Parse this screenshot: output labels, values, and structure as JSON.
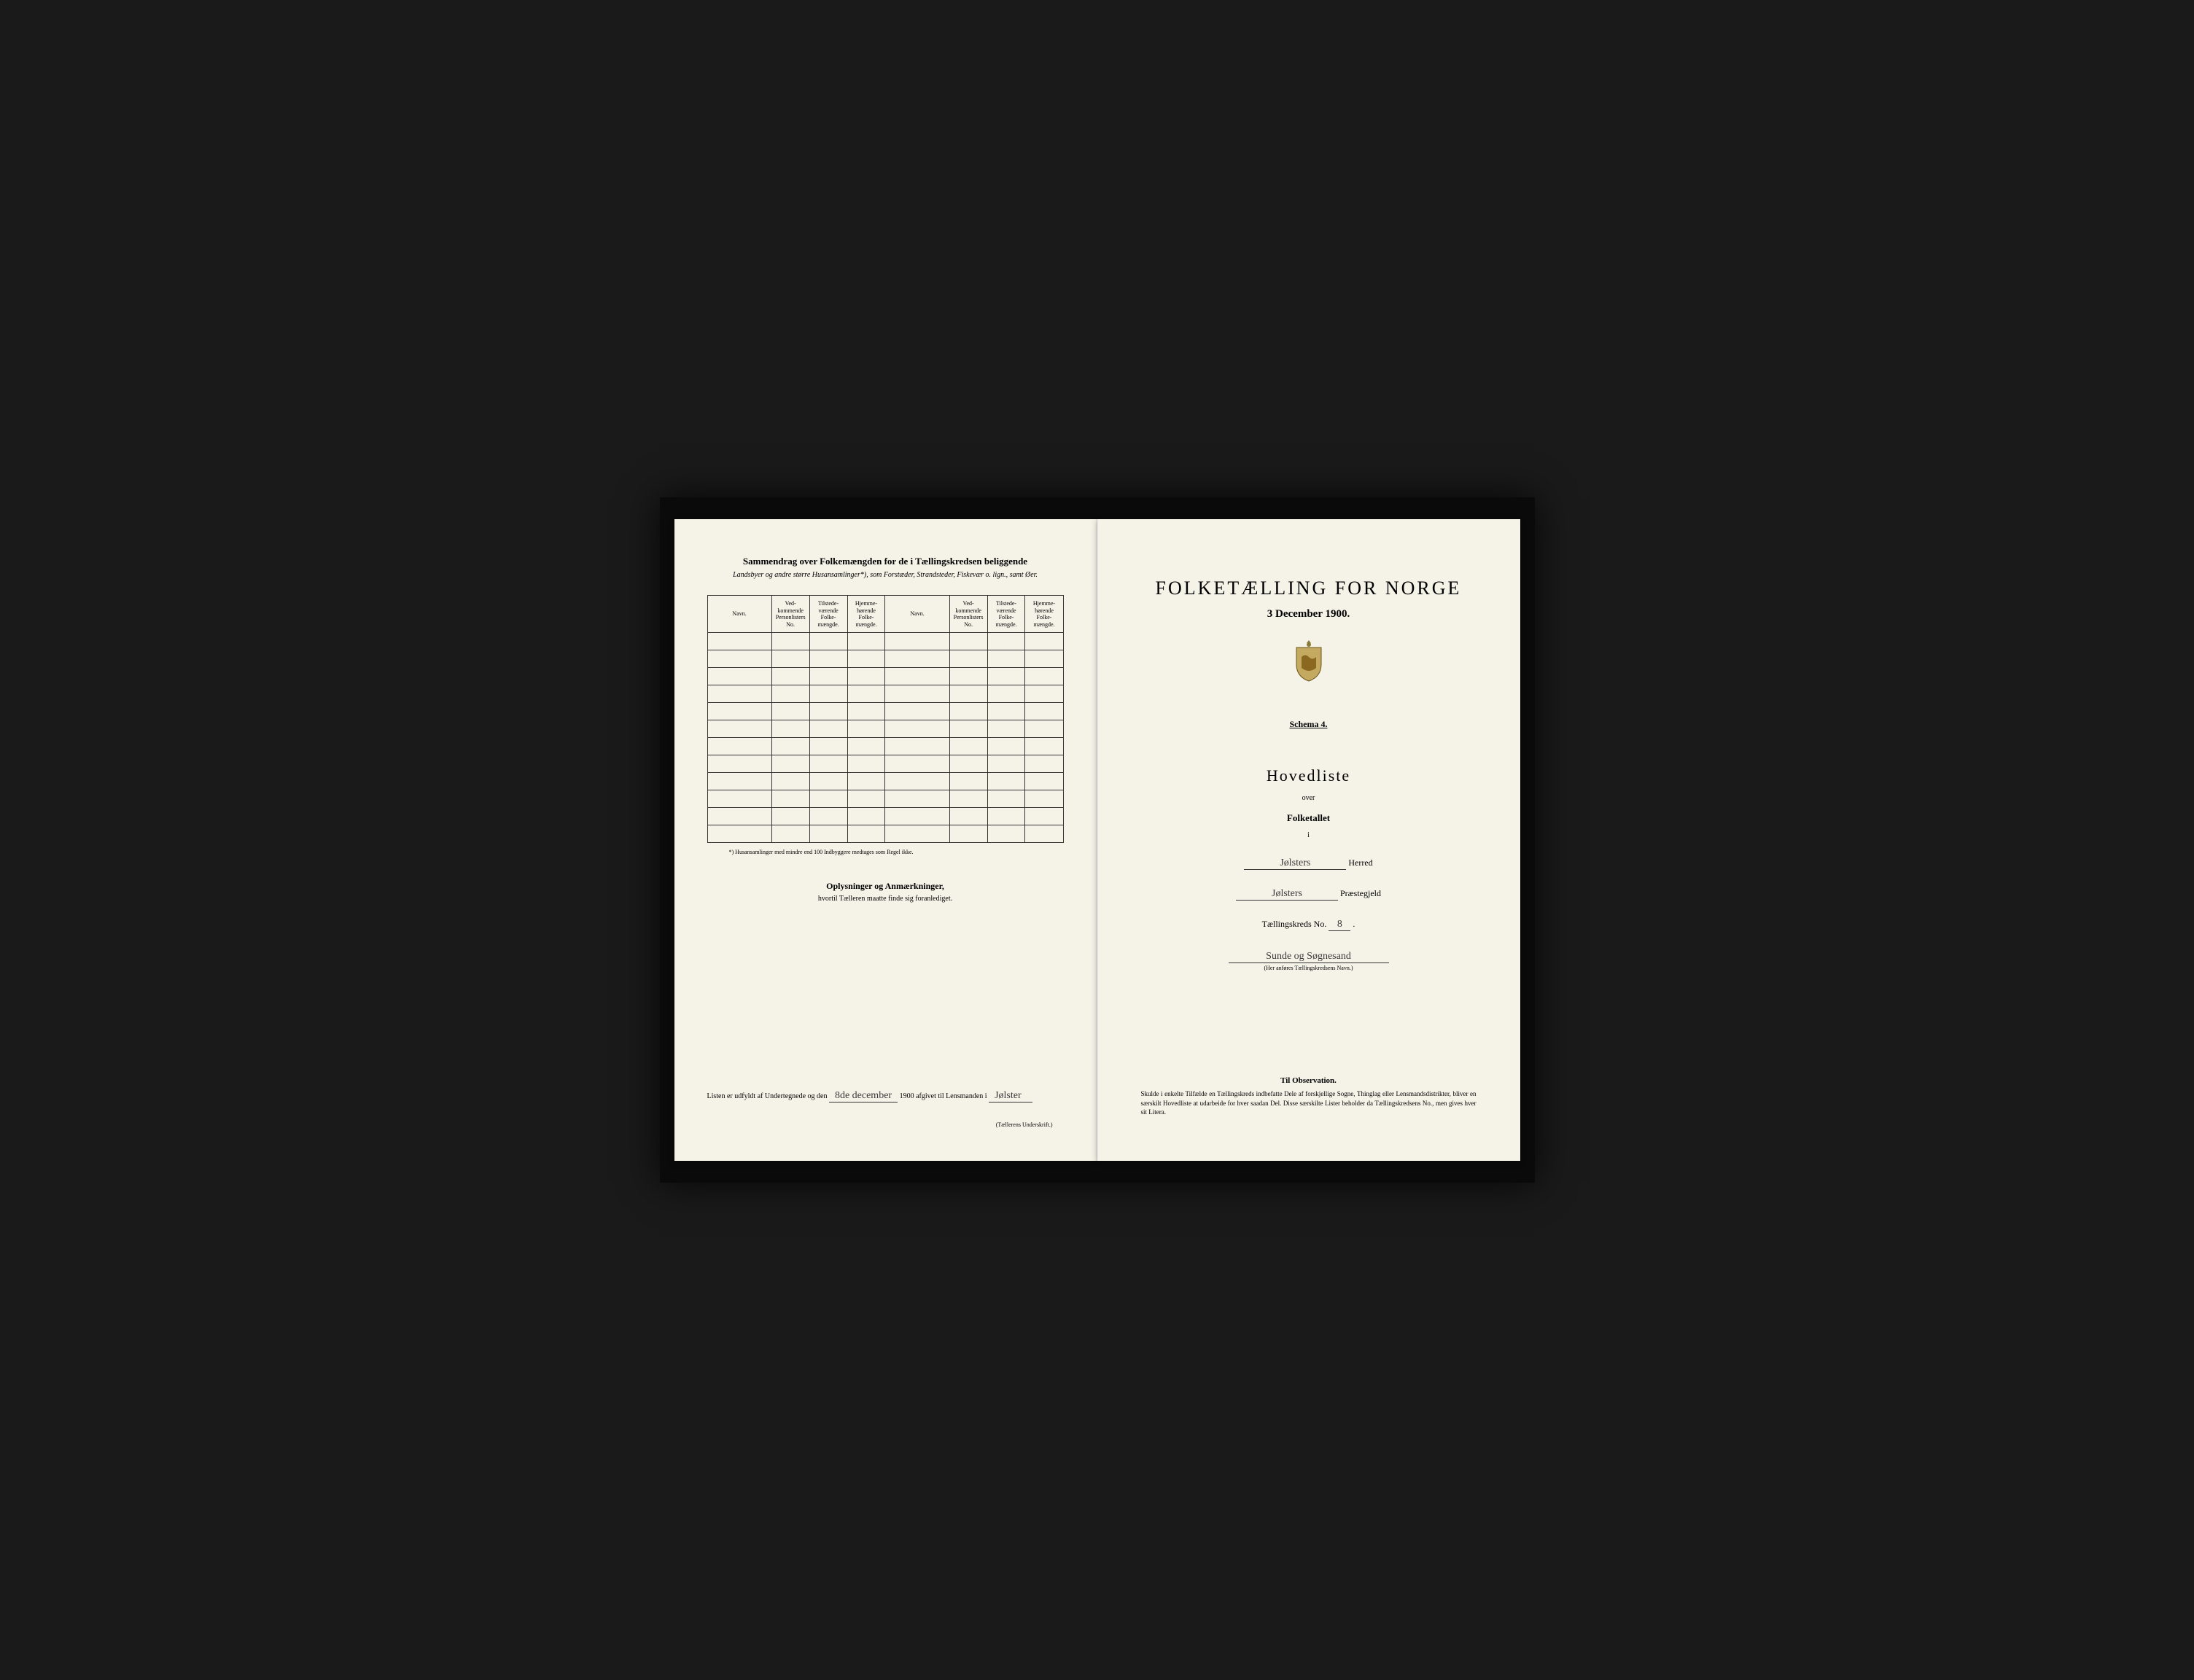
{
  "left": {
    "title": "Sammendrag over Folkemængden for de i Tællingskredsen beliggende",
    "subtitle": "Landsbyer og andre større Husansamlinger*), som Forstæder, Strandsteder, Fiskevær o. lign., samt Øer.",
    "table": {
      "headers": {
        "navn": "Navn.",
        "vedkommende": "Ved-kommende Personlisters No.",
        "tilstede": "Tilstede-værende Folke-mængde.",
        "hjemme": "Hjemme-hørende Folke-mængde."
      },
      "row_count": 12
    },
    "footnote": "*) Husansamlinger med mindre end 100 Indbyggere medtages som Regel ikke.",
    "oplysninger_title": "Oplysninger og Anmærkninger,",
    "oplysninger_sub": "hvortil Tælleren maatte finde sig foranlediget.",
    "signature": {
      "prefix": "Listen er udfyldt af Undertegnede og den",
      "date": "8de december",
      "year": "1900",
      "middle": "afgivet til Lensmanden i",
      "place": "Jølster"
    },
    "underskrift_label": "(Tællerens Underskrift.)"
  },
  "right": {
    "main_title": "FOLKETÆLLING FOR NORGE",
    "date": "3 December 1900.",
    "schema": "Schema 4.",
    "hovedliste": "Hovedliste",
    "over": "over",
    "folketallet": "Folketallet",
    "i": "i",
    "herred_value": "Jølsters",
    "herred_label": "Herred",
    "prestegjeld_value": "Jølsters",
    "prestegjeld_label": "Præstegjeld",
    "kreds_label": "Tællingskreds No.",
    "kreds_no": "8",
    "kreds_name": "Sunde og Søgnesand",
    "kreds_caption": "(Her anføres Tællingskredsens Navn.)",
    "observation_title": "Til Observation.",
    "observation_text": "Skulde i enkelte Tilfælde en Tællingskreds indbefatte Dele af forskjellige Sogne, Thinglag eller Lensmandsdistrikter, bliver en særskilt Hovedliste at udarbeide for hver saadan Del. Disse særskilte Lister beholder da Tællingskredsens No., men gives hver sit Litera."
  },
  "colors": {
    "page_bg": "#f5f2e8",
    "book_bg": "#0a0a0a",
    "outer_bg": "#1a1a1a",
    "text": "#1a1a1a",
    "handwriting": "#3a3a3a"
  }
}
